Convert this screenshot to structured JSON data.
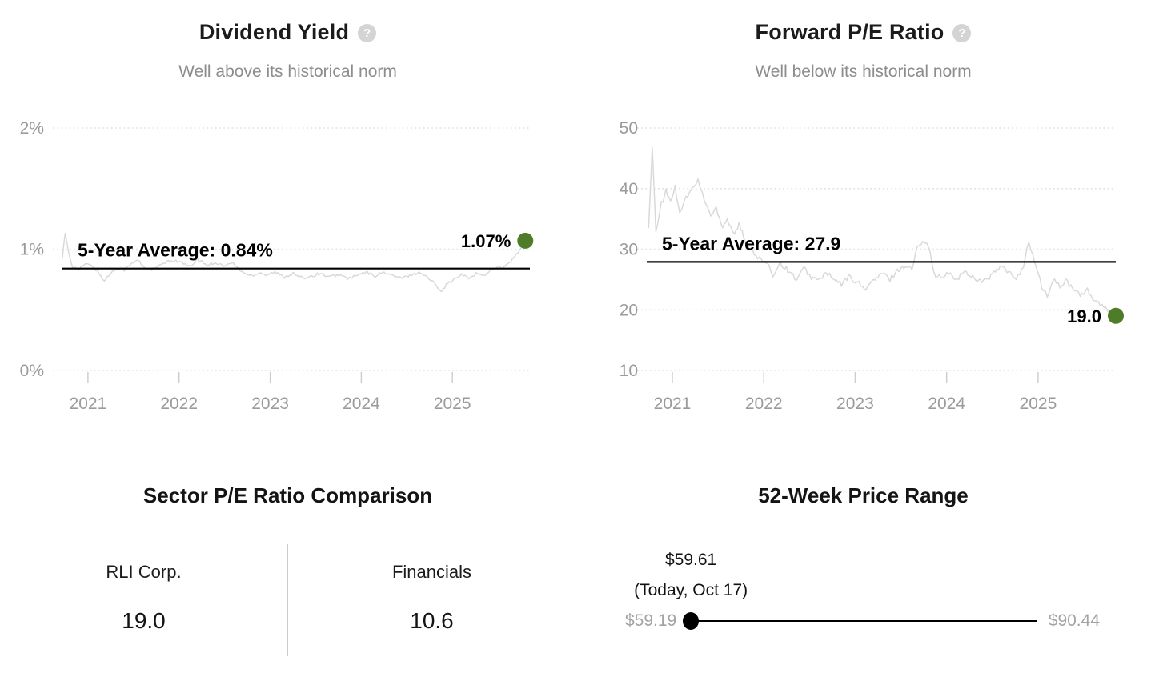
{
  "chart_data": [
    {
      "type": "line",
      "title": "Dividend Yield",
      "subtitle": "Well above its historical norm",
      "help_glyph": "?",
      "xlabel": "",
      "ylabel": "",
      "ylim": [
        0,
        2
      ],
      "yticks": [
        {
          "v": 2,
          "label": "2%"
        },
        {
          "v": 1,
          "label": "1%"
        },
        {
          "v": 0,
          "label": "0%"
        }
      ],
      "xlim": [
        2020.72,
        2025.85
      ],
      "xticks": [
        {
          "v": 2021,
          "label": "2021"
        },
        {
          "v": 2022,
          "label": "2022"
        },
        {
          "v": 2023,
          "label": "2023"
        },
        {
          "v": 2024,
          "label": "2024"
        },
        {
          "v": 2025,
          "label": "2025"
        }
      ],
      "grid": "horizontal-dotted",
      "legend": "none",
      "average": {
        "value": 0.84,
        "label": "5-Year Average: 0.84%"
      },
      "current": {
        "value": 1.07,
        "label": "1.07%"
      },
      "line_color": "#d9d9d9",
      "average_line_color": "#000000",
      "dot_color": "#4f7c28",
      "noise_amp": 0.012,
      "seed": 3,
      "series": [
        {
          "name": "Dividend Yield",
          "points": [
            [
              2020.72,
              0.93
            ],
            [
              2020.75,
              1.13
            ],
            [
              2020.79,
              0.97
            ],
            [
              2020.83,
              0.86
            ],
            [
              2020.9,
              0.83
            ],
            [
              2020.97,
              0.88
            ],
            [
              2021.05,
              0.86
            ],
            [
              2021.1,
              0.82
            ],
            [
              2021.18,
              0.74
            ],
            [
              2021.25,
              0.8
            ],
            [
              2021.32,
              0.85
            ],
            [
              2021.4,
              0.83
            ],
            [
              2021.48,
              0.88
            ],
            [
              2021.55,
              0.91
            ],
            [
              2021.62,
              0.85
            ],
            [
              2021.7,
              0.83
            ],
            [
              2021.78,
              0.86
            ],
            [
              2021.85,
              0.89
            ],
            [
              2021.95,
              0.91
            ],
            [
              2022.05,
              0.88
            ],
            [
              2022.12,
              0.85
            ],
            [
              2022.2,
              0.92
            ],
            [
              2022.3,
              0.87
            ],
            [
              2022.4,
              0.89
            ],
            [
              2022.5,
              0.86
            ],
            [
              2022.58,
              0.89
            ],
            [
              2022.65,
              0.84
            ],
            [
              2022.72,
              0.8
            ],
            [
              2022.8,
              0.78
            ],
            [
              2022.88,
              0.81
            ],
            [
              2022.95,
              0.79
            ],
            [
              2023.05,
              0.81
            ],
            [
              2023.15,
              0.77
            ],
            [
              2023.25,
              0.8
            ],
            [
              2023.35,
              0.76
            ],
            [
              2023.45,
              0.78
            ],
            [
              2023.55,
              0.8
            ],
            [
              2023.65,
              0.77
            ],
            [
              2023.75,
              0.79
            ],
            [
              2023.85,
              0.76
            ],
            [
              2023.95,
              0.78
            ],
            [
              2024.05,
              0.81
            ],
            [
              2024.15,
              0.78
            ],
            [
              2024.25,
              0.81
            ],
            [
              2024.35,
              0.78
            ],
            [
              2024.45,
              0.76
            ],
            [
              2024.55,
              0.79
            ],
            [
              2024.65,
              0.81
            ],
            [
              2024.72,
              0.77
            ],
            [
              2024.8,
              0.72
            ],
            [
              2024.88,
              0.66
            ],
            [
              2024.95,
              0.72
            ],
            [
              2025.02,
              0.75
            ],
            [
              2025.1,
              0.79
            ],
            [
              2025.18,
              0.76
            ],
            [
              2025.26,
              0.8
            ],
            [
              2025.34,
              0.78
            ],
            [
              2025.42,
              0.83
            ],
            [
              2025.5,
              0.86
            ],
            [
              2025.56,
              0.84
            ],
            [
              2025.62,
              0.89
            ],
            [
              2025.68,
              0.93
            ],
            [
              2025.74,
              0.99
            ],
            [
              2025.8,
              1.07
            ]
          ]
        }
      ]
    },
    {
      "type": "line",
      "title": "Forward P/E Ratio",
      "subtitle": "Well below its historical norm",
      "help_glyph": "?",
      "xlabel": "",
      "ylabel": "",
      "ylim": [
        10,
        50
      ],
      "yticks": [
        {
          "v": 50,
          "label": "50"
        },
        {
          "v": 40,
          "label": "40"
        },
        {
          "v": 30,
          "label": "30"
        },
        {
          "v": 20,
          "label": "20"
        },
        {
          "v": 10,
          "label": "10"
        }
      ],
      "xlim": [
        2020.72,
        2025.85
      ],
      "xticks": [
        {
          "v": 2021,
          "label": "2021"
        },
        {
          "v": 2022,
          "label": "2022"
        },
        {
          "v": 2023,
          "label": "2023"
        },
        {
          "v": 2024,
          "label": "2024"
        },
        {
          "v": 2025,
          "label": "2025"
        }
      ],
      "grid": "horizontal-dotted",
      "legend": "none",
      "average": {
        "value": 27.9,
        "label": "5-Year Average: 27.9"
      },
      "current": {
        "value": 19.0,
        "label": "19.0"
      },
      "line_color": "#d9d9d9",
      "average_line_color": "#000000",
      "dot_color": "#4f7c28",
      "noise_amp": 0.45,
      "seed": 77,
      "series": [
        {
          "name": "Forward P/E Ratio",
          "points": [
            [
              2020.74,
              33.5
            ],
            [
              2020.78,
              46.5
            ],
            [
              2020.82,
              33.0
            ],
            [
              2020.88,
              37.5
            ],
            [
              2020.93,
              39.5
            ],
            [
              2020.98,
              38.0
            ],
            [
              2021.03,
              40.2
            ],
            [
              2021.08,
              36.2
            ],
            [
              2021.15,
              38.5
            ],
            [
              2021.22,
              40.0
            ],
            [
              2021.28,
              41.3
            ],
            [
              2021.35,
              38.2
            ],
            [
              2021.42,
              35.5
            ],
            [
              2021.48,
              36.8
            ],
            [
              2021.55,
              33.8
            ],
            [
              2021.6,
              35.0
            ],
            [
              2021.68,
              32.5
            ],
            [
              2021.73,
              34.2
            ],
            [
              2021.8,
              31.0
            ],
            [
              2021.88,
              29.8
            ],
            [
              2021.95,
              28.4
            ],
            [
              2022.02,
              27.8
            ],
            [
              2022.1,
              25.8
            ],
            [
              2022.18,
              27.8
            ],
            [
              2022.28,
              26.3
            ],
            [
              2022.36,
              25.0
            ],
            [
              2022.44,
              26.8
            ],
            [
              2022.52,
              25.4
            ],
            [
              2022.6,
              24.8
            ],
            [
              2022.68,
              26.2
            ],
            [
              2022.76,
              25.0
            ],
            [
              2022.85,
              24.2
            ],
            [
              2022.93,
              25.5
            ],
            [
              2023.02,
              24.6
            ],
            [
              2023.1,
              23.4
            ],
            [
              2023.2,
              24.8
            ],
            [
              2023.3,
              26.0
            ],
            [
              2023.38,
              25.0
            ],
            [
              2023.46,
              26.5
            ],
            [
              2023.55,
              27.3
            ],
            [
              2023.62,
              26.7
            ],
            [
              2023.68,
              30.2
            ],
            [
              2023.74,
              31.7
            ],
            [
              2023.8,
              30.8
            ],
            [
              2023.86,
              26.0
            ],
            [
              2023.94,
              25.2
            ],
            [
              2024.02,
              26.0
            ],
            [
              2024.1,
              25.0
            ],
            [
              2024.2,
              26.3
            ],
            [
              2024.3,
              25.3
            ],
            [
              2024.4,
              24.6
            ],
            [
              2024.5,
              25.8
            ],
            [
              2024.6,
              27.2
            ],
            [
              2024.68,
              26.0
            ],
            [
              2024.76,
              25.3
            ],
            [
              2024.84,
              27.2
            ],
            [
              2024.9,
              31.3
            ],
            [
              2024.96,
              28.0
            ],
            [
              2025.04,
              23.8
            ],
            [
              2025.1,
              22.3
            ],
            [
              2025.18,
              25.2
            ],
            [
              2025.24,
              23.6
            ],
            [
              2025.3,
              24.8
            ],
            [
              2025.38,
              23.4
            ],
            [
              2025.46,
              22.6
            ],
            [
              2025.54,
              23.2
            ],
            [
              2025.6,
              21.8
            ],
            [
              2025.66,
              21.0
            ],
            [
              2025.72,
              20.3
            ],
            [
              2025.79,
              19.6
            ],
            [
              2025.85,
              19.0
            ]
          ]
        }
      ]
    }
  ],
  "sector_comparison": {
    "title": "Sector P/E Ratio Comparison",
    "columns": [
      {
        "label": "RLI Corp.",
        "value": "19.0"
      },
      {
        "label": "Financials",
        "value": "10.6"
      }
    ]
  },
  "price_range": {
    "title": "52-Week Price Range",
    "today_label": "$59.61",
    "today_sub": "(Today, Oct 17)",
    "low_label": "$59.19",
    "high_label": "$90.44",
    "low": 59.19,
    "high": 90.44,
    "today": 59.61
  },
  "colors": {
    "accent_green": "#4f7c28",
    "axis_text": "#9b9b9b",
    "subtitle_text": "#8d8d8d",
    "gridline": "#e2e2e2",
    "series_line": "#d9d9d9",
    "average_line": "#000000",
    "slider_label_text": "#a3a3a3"
  }
}
